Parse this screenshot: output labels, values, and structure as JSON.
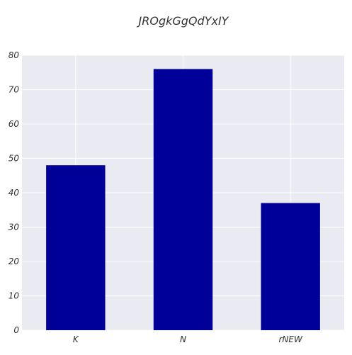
{
  "chart_data": {
    "type": "bar",
    "title": "JROgkGgQdYxIY",
    "xlabel": "",
    "ylabel": "",
    "categories": [
      "K",
      "N",
      "rNEW"
    ],
    "values": [
      48,
      76,
      37
    ],
    "ylim": [
      0,
      80
    ],
    "yticks": [
      "0",
      "10",
      "20",
      "30",
      "40",
      "50",
      "60",
      "70",
      "80"
    ],
    "grid": true,
    "legend": "none",
    "colors": {
      "bar": "#000099",
      "plot_background": "#EAEAF2",
      "grid": "#FFFFFF",
      "text": "#333333"
    }
  }
}
